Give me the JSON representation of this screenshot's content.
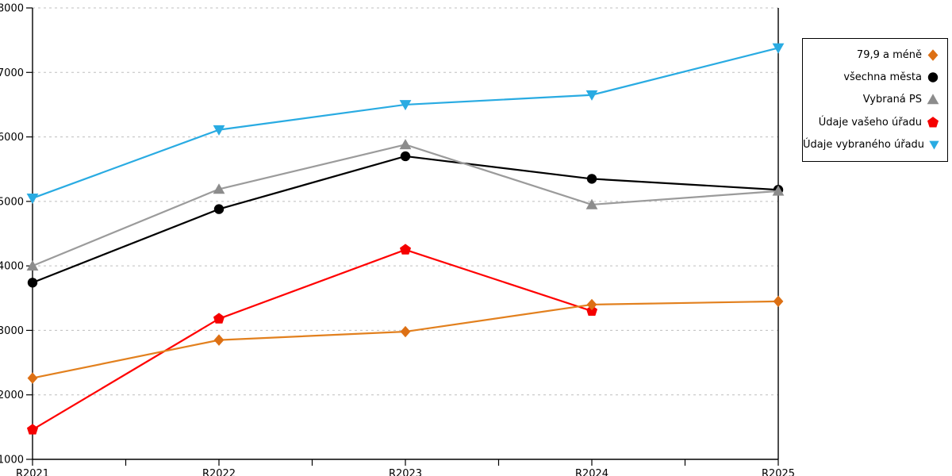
{
  "chart_data": {
    "type": "line",
    "title": "",
    "xlabel": "",
    "ylabel": "",
    "categories": [
      "R2021",
      "R2022",
      "R2023",
      "R2024",
      "R2025"
    ],
    "series": [
      {
        "name": "79,9 a méně",
        "marker": "diamond",
        "color": "#E2801E",
        "marker_color": "#DD7014",
        "values": [
          2260,
          2850,
          2980,
          3400,
          3450
        ]
      },
      {
        "name": "všechna města",
        "marker": "circle",
        "color": "#000000",
        "marker_color": "#000000",
        "values": [
          3740,
          4880,
          5700,
          5350,
          5180
        ]
      },
      {
        "name": "Vybraná PS",
        "marker": "triangle-up",
        "color": "#9B9B9B",
        "marker_color": "#8C8C8C",
        "values": [
          4000,
          5190,
          5880,
          4950,
          5160
        ]
      },
      {
        "name": "Údaje vašeho úřadu",
        "marker": "pentagon",
        "color": "#FF0000",
        "marker_color": "#F50000",
        "values": [
          1460,
          3180,
          4250,
          3300,
          null
        ]
      },
      {
        "name": "Údaje vybraného úřadu",
        "marker": "triangle-down",
        "color": "#29ABE2",
        "marker_color": "#29ABE2",
        "values": [
          5050,
          6110,
          6500,
          6650,
          7380
        ]
      }
    ],
    "draw_order": [
      3,
      1,
      2,
      0,
      4
    ],
    "ylim": [
      1000,
      8000
    ],
    "yticks": [
      1000,
      2000,
      3000,
      4000,
      5000,
      6000,
      7000,
      8000
    ],
    "grid": "horizontal-dashed",
    "legend_position": "right",
    "minor_xticks_between_categories": true
  },
  "colors": {
    "grid": "#BFBFBF",
    "axis": "#000000",
    "background": "#FFFFFF",
    "tick_label": "#000000"
  }
}
